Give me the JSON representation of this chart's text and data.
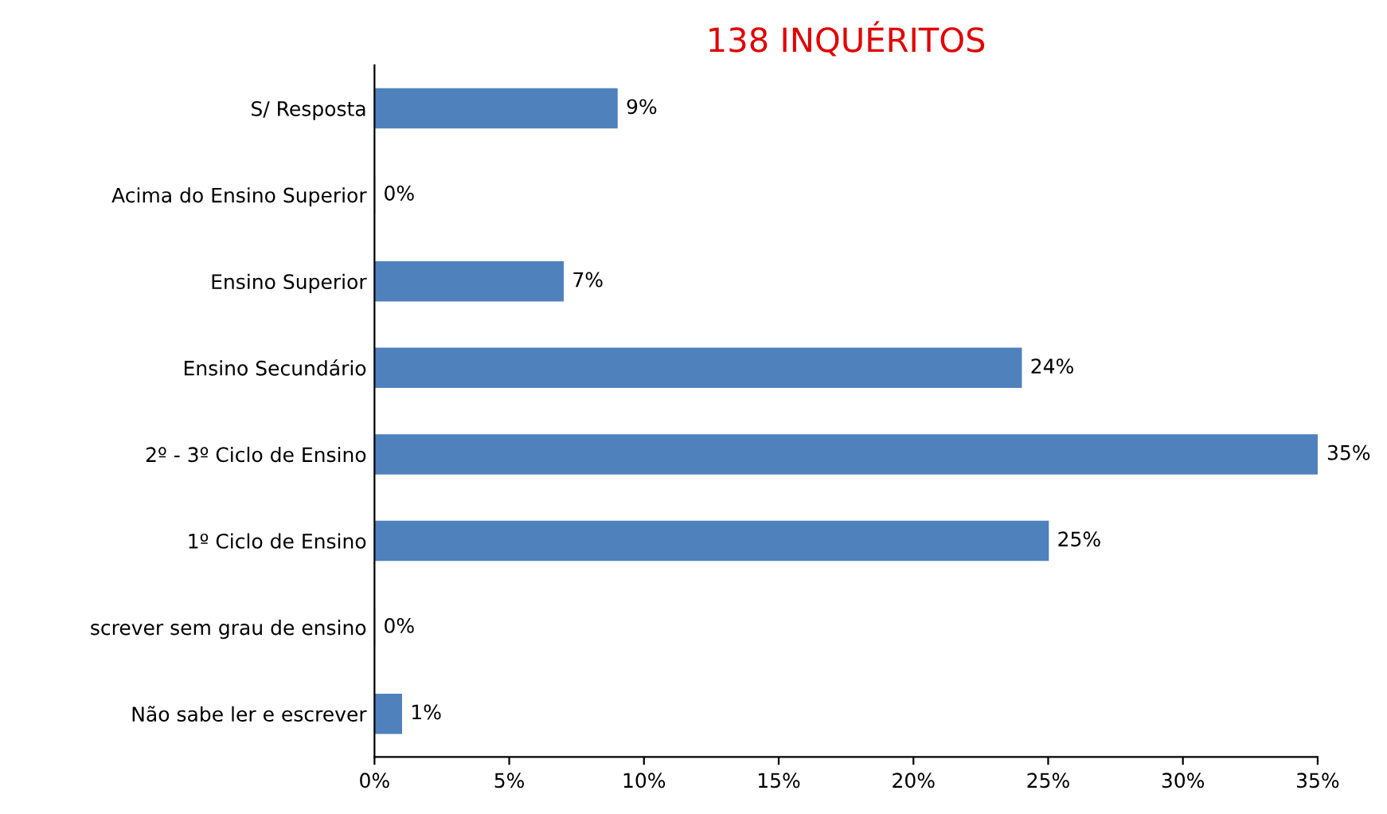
{
  "chart_data": {
    "type": "bar",
    "orientation": "horizontal",
    "title": "138 INQUÉRITOS",
    "categories": [
      "S/ Resposta",
      "Acima do Ensino Superior",
      "Ensino Superior",
      "Ensino Secundário",
      "2º - 3º Ciclo de Ensino",
      "1º Ciclo de Ensino",
      "screver sem grau de ensino",
      "Não sabe ler e escrever"
    ],
    "values": [
      9,
      0,
      7,
      24,
      35,
      25,
      0,
      1
    ],
    "value_labels": [
      "9%",
      "0%",
      "7%",
      "24%",
      "35%",
      "25%",
      "0%",
      "1%"
    ],
    "color": "#4f81bd",
    "xlim": [
      0,
      35
    ],
    "xticks": [
      {
        "value": 0,
        "label": "0%"
      },
      {
        "value": 5,
        "label": "5%"
      },
      {
        "value": 10,
        "label": "10%"
      },
      {
        "value": 15,
        "label": "15%"
      },
      {
        "value": 20,
        "label": "20%"
      },
      {
        "value": 25,
        "label": "25%"
      },
      {
        "value": 30,
        "label": "30%"
      },
      {
        "value": 35,
        "label": "35%"
      }
    ],
    "grid": false,
    "legend": false
  }
}
